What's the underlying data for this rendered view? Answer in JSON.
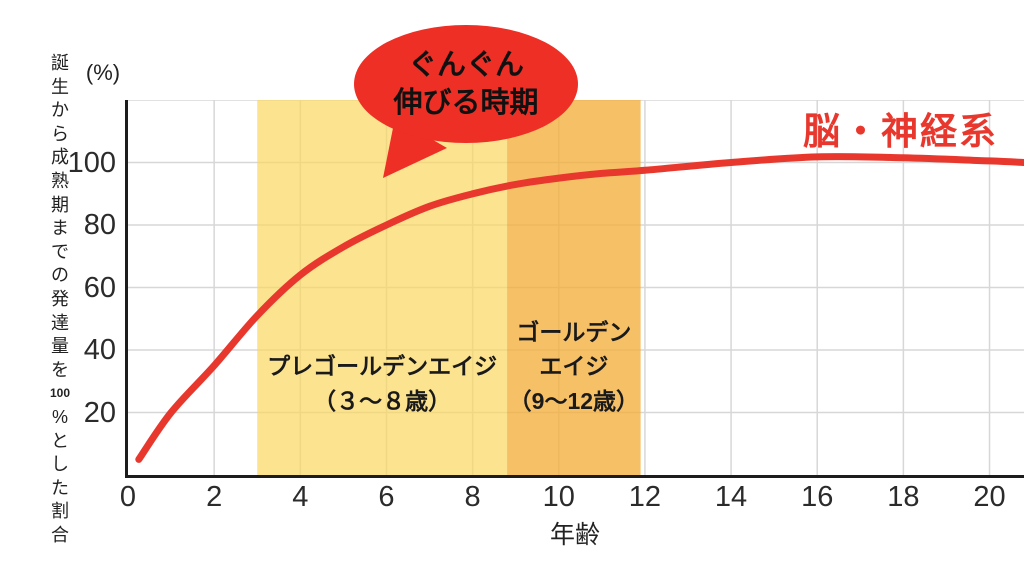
{
  "page": {
    "background": "#ffffff"
  },
  "chart_data": {
    "type": "line",
    "title": "",
    "x_axis": {
      "label": "年齢",
      "ticks": [
        0,
        2,
        4,
        6,
        8,
        10,
        12,
        14,
        16,
        18,
        20
      ],
      "range": [
        0,
        20.8
      ],
      "grid": true
    },
    "y_axis": {
      "unit_label": "(%)",
      "title_vertical": "誕生から成熟期までの発達量を100%とした割合",
      "title_cells": [
        "誕",
        "生",
        "か",
        "ら",
        "成",
        "熟",
        "期",
        "ま",
        "で",
        "の",
        "発",
        "達",
        "量",
        "を",
        "100",
        "%",
        "と",
        "し",
        "た",
        "割",
        "合"
      ],
      "ticks": [
        20,
        40,
        60,
        80,
        100
      ],
      "gridlines": [
        20,
        40,
        60,
        80,
        100,
        120
      ],
      "range": [
        0,
        120
      ],
      "grid": true
    },
    "series": [
      {
        "name": "脳・神経系",
        "color": "#e8382d",
        "line_width": 7,
        "points": [
          [
            0.25,
            5
          ],
          [
            1,
            20
          ],
          [
            2,
            35
          ],
          [
            3,
            51
          ],
          [
            4,
            64
          ],
          [
            5,
            73
          ],
          [
            6,
            80
          ],
          [
            7,
            86
          ],
          [
            8,
            90
          ],
          [
            9,
            93
          ],
          [
            10,
            95
          ],
          [
            11,
            96.5
          ],
          [
            12,
            97.5
          ],
          [
            14,
            100
          ],
          [
            16,
            101.8
          ],
          [
            18,
            101.5
          ],
          [
            20,
            100.5
          ],
          [
            20.8,
            100
          ]
        ]
      }
    ],
    "bands": [
      {
        "name": "pre-golden-age",
        "label_lines": [
          "プレゴールデンエイジ",
          "（３～８歳）"
        ],
        "x_from": 3,
        "x_to": 8.8,
        "ages_text": "3〜8歳",
        "fill": "rgba(251,215,95,0.7)",
        "fill_solid": "#fce38f"
      },
      {
        "name": "golden-age",
        "label_lines": [
          "ゴールデン",
          "エイジ",
          "（9～12歳）"
        ],
        "x_from": 8.8,
        "x_to": 11.9,
        "ages_text": "9〜12歳",
        "fill": "rgba(244,174,60,0.78)",
        "fill_solid": "#f6c067"
      }
    ],
    "annotation": {
      "lines": [
        "ぐんぐん",
        "伸びる時期"
      ],
      "fill": "#ed2f26",
      "text_color": "#111111"
    },
    "grid_color": "#d7d7d7",
    "axis_color": "#1c1c1c",
    "tick_color": "#2b2b2b"
  }
}
